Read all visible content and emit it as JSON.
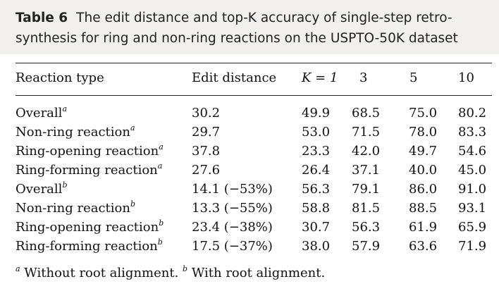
{
  "caption": {
    "table_number": "Table 6",
    "line1": "The edit distance and top-K accuracy of single-step retro-",
    "line2": "synthesis for ring and non-ring reactions on the USPTO-50K dataset"
  },
  "headers": {
    "reaction_type": "Reaction type",
    "edit_distance": "Edit distance",
    "k1": "K = 1",
    "k3": "3",
    "k5": "5",
    "k10": "10"
  },
  "rows": [
    {
      "label": "Overall",
      "sup": "a",
      "edit": "30.2",
      "k1": "49.9",
      "k3": "68.5",
      "k5": "75.0",
      "k10": "80.2"
    },
    {
      "label": "Non-ring reaction",
      "sup": "a",
      "edit": "29.7",
      "k1": "53.0",
      "k3": "71.5",
      "k5": "78.0",
      "k10": "83.3"
    },
    {
      "label": "Ring-opening reaction",
      "sup": "a",
      "edit": "37.8",
      "k1": "23.3",
      "k3": "42.0",
      "k5": "49.7",
      "k10": "54.6"
    },
    {
      "label": "Ring-forming reaction",
      "sup": "a",
      "edit": "27.6",
      "k1": "26.4",
      "k3": "37.1",
      "k5": "40.0",
      "k10": "45.0"
    },
    {
      "label": "Overall",
      "sup": "b",
      "edit": "14.1 (−53%)",
      "k1": "56.3",
      "k3": "79.1",
      "k5": "86.0",
      "k10": "91.0"
    },
    {
      "label": "Non-ring reaction",
      "sup": "b",
      "edit": "13.3 (−55%)",
      "k1": "58.8",
      "k3": "81.5",
      "k5": "88.5",
      "k10": "93.1"
    },
    {
      "label": "Ring-opening reaction",
      "sup": "b",
      "edit": "23.4 (−38%)",
      "k1": "30.7",
      "k3": "56.3",
      "k5": "61.9",
      "k10": "65.9"
    },
    {
      "label": "Ring-forming reaction",
      "sup": "b",
      "edit": "17.5 (−37%)",
      "k1": "38.0",
      "k3": "57.9",
      "k5": "63.6",
      "k10": "71.9"
    }
  ],
  "footnotes": {
    "a_mark": "a",
    "a_text": "Without root alignment.",
    "b_mark": "b",
    "b_text": "With root alignment."
  }
}
